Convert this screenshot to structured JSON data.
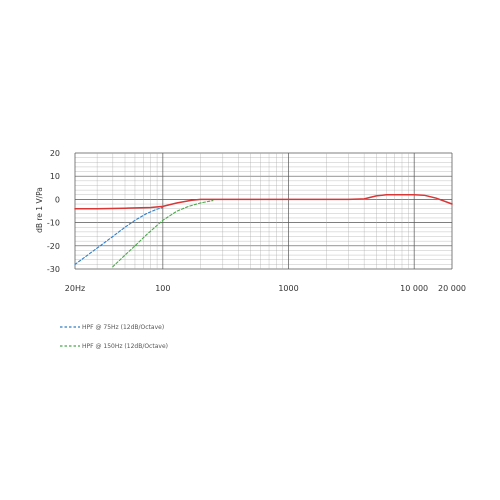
{
  "chart_data": {
    "type": "line",
    "ylabel": "dB re 1 V/Pa",
    "xscale": "log",
    "xlim": [
      20,
      20000
    ],
    "ylim": [
      -30,
      20
    ],
    "grid": true,
    "x_ticks": [
      {
        "value": 20,
        "label": "20Hz"
      },
      {
        "value": 100,
        "label": "100"
      },
      {
        "value": 1000,
        "label": "1000"
      },
      {
        "value": 10000,
        "label": "10 000"
      },
      {
        "value": 20000,
        "label": "20 000"
      }
    ],
    "y_ticks": [
      {
        "value": 20,
        "label": "20"
      },
      {
        "value": 10,
        "label": "10"
      },
      {
        "value": 0,
        "label": "0"
      },
      {
        "value": -10,
        "label": "-10"
      },
      {
        "value": -20,
        "label": "-20"
      },
      {
        "value": -30,
        "label": "-30"
      }
    ],
    "series": [
      {
        "name": "",
        "style": "solid",
        "color": "#d93636",
        "x": [
          20,
          30,
          50,
          80,
          100,
          130,
          170,
          200,
          300,
          500,
          1000,
          2000,
          3000,
          4000,
          5000,
          6000,
          8000,
          10000,
          12000,
          15000,
          20000
        ],
        "y": [
          -4,
          -4,
          -3.8,
          -3.5,
          -3,
          -1.5,
          -0.4,
          0,
          0,
          0,
          0,
          0,
          0,
          0.2,
          1.5,
          2,
          2,
          2,
          1.8,
          0.5,
          -2
        ]
      },
      {
        "name": "HPF @ 75Hz (12dB/Octave)",
        "style": "dashed",
        "color": "#2f7fc8",
        "x": [
          20,
          30,
          40,
          50,
          60,
          75,
          90,
          100
        ],
        "y": [
          -28,
          -21,
          -16,
          -12,
          -9,
          -6,
          -4.2,
          -3.5
        ]
      },
      {
        "name": "HPF @ 150Hz (12dB/Octave)",
        "style": "dashed",
        "color": "#4aa84a",
        "x": [
          40,
          50,
          60,
          75,
          100,
          130,
          160,
          200,
          250
        ],
        "y": [
          -29,
          -24,
          -20,
          -15,
          -9,
          -5,
          -3,
          -1.5,
          -0.5
        ]
      }
    ]
  }
}
